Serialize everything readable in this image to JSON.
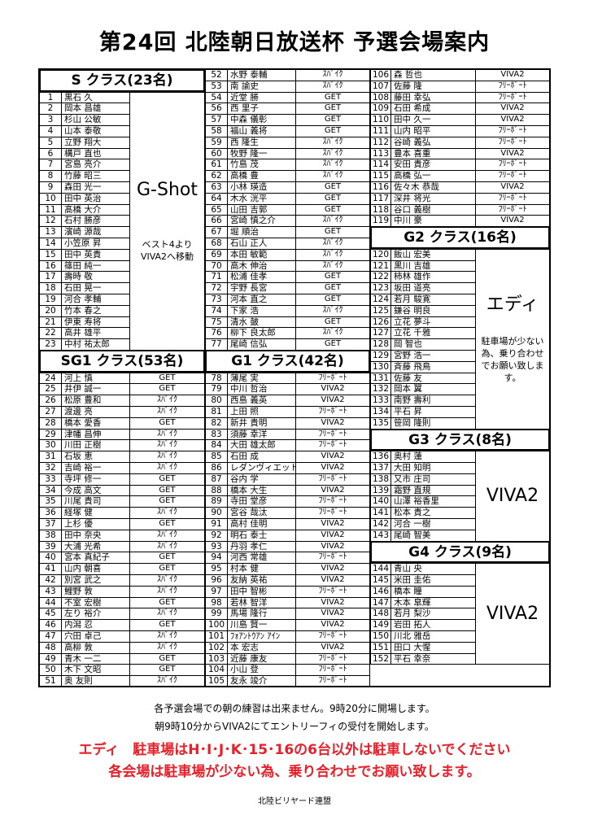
{
  "title": "第24回 北陸朝日放送杯 予選会場案内",
  "columns": [
    {
      "blocks": [
        {
          "header": "S クラス(23名)",
          "merged_venue": {
            "main": "G-Shot",
            "note": "ベスト4より\nVIVA2へ移動"
          },
          "players": [
            [
              1,
              "黒石 久"
            ],
            [
              2,
              "岡本 昌雄"
            ],
            [
              3,
              "杉山 公敏"
            ],
            [
              4,
              "山本 泰敬"
            ],
            [
              5,
              "立野 翔大"
            ],
            [
              6,
              "構戸 直也"
            ],
            [
              7,
              "宮島 亮介"
            ],
            [
              8,
              "竹藤 昭三"
            ],
            [
              9,
              "森田 光一"
            ],
            [
              10,
              "田中 英治"
            ],
            [
              11,
              "髙橋 大介"
            ],
            [
              12,
              "石村 勝彦"
            ],
            [
              13,
              "濱崎 源哉"
            ],
            [
              14,
              "小笠原 昇"
            ],
            [
              15,
              "田中 英貴"
            ],
            [
              16,
              "篠田 純一"
            ],
            [
              17,
              "壽時 敬"
            ],
            [
              18,
              "石田 晃一"
            ],
            [
              19,
              "河合 孝輔"
            ],
            [
              20,
              "竹本 春之"
            ],
            [
              21,
              "伊東 寿将"
            ],
            [
              22,
              "高井 雄平"
            ],
            [
              23,
              "中村 祐太郎"
            ]
          ]
        },
        {
          "header": "SG1 クラス(53名)",
          "players": [
            [
              24,
              "河上 慎",
              "GET"
            ],
            [
              25,
              "井伊 誠一",
              "GET"
            ],
            [
              26,
              "松原 豊和",
              "ｽﾊﾟｲｸ"
            ],
            [
              27,
              "渡邊 亮",
              "ｽﾊﾟｲｸ"
            ],
            [
              28,
              "橋本 愛香",
              "GET"
            ],
            [
              29,
              "津幡 昌伸",
              "ｽﾊﾟｲｸ"
            ],
            [
              30,
              "川田 正樹",
              "ｽﾊﾟｲｸ"
            ],
            [
              31,
              "石坂 恵",
              "ｽﾊﾟｲｸ"
            ],
            [
              32,
              "吉崎 裕一",
              "ｽﾊﾟｲｸ"
            ],
            [
              33,
              "寺坪 修一",
              "GET"
            ],
            [
              34,
              "今成 高文",
              "GET"
            ],
            [
              35,
              "川尾 貴司",
              "GET"
            ],
            [
              36,
              "経塚 健",
              "ｽﾊﾟｲｸ"
            ],
            [
              37,
              "上杉 優",
              "GET"
            ],
            [
              38,
              "田中 奈央",
              "ｽﾊﾟｲｸ"
            ],
            [
              39,
              "大浦 光希",
              "ｽﾊﾟｲｸ"
            ],
            [
              40,
              "宮本 真紀子",
              "GET"
            ],
            [
              41,
              "山内 朝喜",
              "GET"
            ],
            [
              42,
              "別宮 武之",
              "ｽﾊﾟｲｸ"
            ],
            [
              43,
              "鯉野 敦",
              "ｽﾊﾟｲｸ"
            ],
            [
              44,
              "不室 宏樹",
              "GET"
            ],
            [
              45,
              "左り 裕介",
              "ｽﾊﾟｲｸ"
            ],
            [
              46,
              "内潟 忍",
              "GET"
            ],
            [
              47,
              "穴田 卓己",
              "ｽﾊﾟｲｸ"
            ],
            [
              48,
              "高柳 敦",
              "ｽﾊﾟｲｸ"
            ],
            [
              49,
              "青木 一二",
              "GET"
            ],
            [
              50,
              "木下 文昭",
              "GET"
            ],
            [
              51,
              "奥 友則",
              "ｽﾊﾟｲｸ"
            ]
          ]
        }
      ]
    },
    {
      "blocks": [
        {
          "players": [
            [
              52,
              "水野 泰輔",
              "ｽﾊﾟｲｸ"
            ],
            [
              53,
              "南 諭史",
              "ｽﾊﾟｲｸ"
            ],
            [
              54,
              "近堂 勝",
              "GET"
            ],
            [
              56,
              "西 里子",
              "GET"
            ],
            [
              57,
              "中森 儀彰",
              "GET"
            ],
            [
              58,
              "福山 義将",
              "GET"
            ],
            [
              59,
              "西 隆生",
              "ｽﾊﾟｲｸ"
            ],
            [
              60,
              "牧野 隆一",
              "ｽﾊﾟｲｸ"
            ],
            [
              61,
              "竹島 茂",
              "ｽﾊﾟｲｸ"
            ],
            [
              62,
              "高橋 豊",
              "ｽﾊﾟｲｸ"
            ],
            [
              63,
              "小林 瑛造",
              "GET"
            ],
            [
              64,
              "木水 洸平",
              "GET"
            ],
            [
              65,
              "山田 吉郭",
              "GET"
            ],
            [
              66,
              "宮崎 慎之介",
              "ｽﾊﾟｲｸ"
            ],
            [
              67,
              "堀 順治",
              "GET"
            ],
            [
              68,
              "石山 正人",
              "ｽﾊﾟｲｸ"
            ],
            [
              69,
              "本田 敏範",
              "ｽﾊﾟｲｸ"
            ],
            [
              70,
              "高木 伸治",
              "ｽﾊﾟｲｸ"
            ],
            [
              71,
              "松浦 佳孝",
              "GET"
            ],
            [
              72,
              "宇野 長宮",
              "GET"
            ],
            [
              73,
              "河本 直之",
              "GET"
            ],
            [
              74,
              "下家 浩",
              "ｽﾊﾟｲｸ"
            ],
            [
              75,
              "清水 皷",
              "GET"
            ],
            [
              76,
              "柳下 良太郎",
              "ｽﾊﾟｲｸ"
            ],
            [
              77,
              "尾崎 信弘",
              "GET"
            ]
          ]
        },
        {
          "header": "G1 クラス(42名)",
          "players": [
            [
              78,
              "薄尾 実",
              "ﾌﾘｰﾎﾟｰﾄ"
            ],
            [
              79,
              "中川 哲治",
              "VIVA2"
            ],
            [
              80,
              "西島 義英",
              "VIVA2"
            ],
            [
              81,
              "上田 照",
              "ﾌﾘｰﾎﾟｰﾄ"
            ],
            [
              82,
              "新井 貴明",
              "VIVA2"
            ],
            [
              83,
              "須藤 幸洋",
              "ﾌﾘｰﾎﾟｰﾄ"
            ],
            [
              84,
              "大田 雄太郎",
              "ﾌﾘｰﾎﾟｰﾄ"
            ],
            [
              85,
              "石田 成",
              "VIVA2"
            ],
            [
              86,
              "レダンヴィエット",
              "VIVA2"
            ],
            [
              87,
              "谷内 学",
              "ﾌﾘｰﾎﾟｰﾄ"
            ],
            [
              88,
              "橋本 大生",
              "VIVA2"
            ],
            [
              89,
              "寺田 堂彦",
              "ﾌﾘｰﾎﾟｰﾄ"
            ],
            [
              90,
              "宮谷 哉汰",
              "ﾌﾘｰﾎﾟｰﾄ"
            ],
            [
              91,
              "高村 佳明",
              "VIVA2"
            ],
            [
              92,
              "明石 泰士",
              "VIVA2"
            ],
            [
              93,
              "丹羽 孝仁",
              "VIVA2"
            ],
            [
              94,
              "河西 常雄",
              "ﾌﾘｰﾎﾟｰﾄ"
            ],
            [
              95,
              "村本 健",
              "VIVA2"
            ],
            [
              96,
              "友納 英祐",
              "VIVA2"
            ],
            [
              97,
              "田中 智彬",
              "ﾌﾘｰﾎﾟｰﾄ"
            ],
            [
              98,
              "若林 智洋",
              "VIVA2"
            ],
            [
              99,
              "馬場 隆行",
              "VIVA2"
            ],
            [
              100,
              "川島 賢一",
              "VIVA2"
            ],
            [
              101,
              "ﾌｫｱﾝﾄｳｱﾝ ｱｲﾝ",
              "ﾌﾘｰﾎﾟｰﾄ"
            ],
            [
              102,
              "本 宏志",
              "VIVA2"
            ],
            [
              103,
              "近藤 康友",
              "ﾌﾘｰﾎﾟｰﾄ"
            ],
            [
              104,
              "小山 登",
              "ﾌﾘｰﾎﾟｰﾄ"
            ],
            [
              105,
              "友永 竣介",
              "ﾌﾘｰﾎﾟｰﾄ"
            ]
          ]
        }
      ]
    },
    {
      "blocks": [
        {
          "players": [
            [
              106,
              "森 哲也",
              "VIVA2"
            ],
            [
              107,
              "佐藤 隆",
              "ﾌﾘｰﾎﾟｰﾄ"
            ],
            [
              108,
              "藤田 幸弘",
              "ﾌﾘｰﾎﾟｰﾄ"
            ],
            [
              109,
              "石田 希成",
              "VIVA2"
            ],
            [
              110,
              "田中 久一",
              "VIVA2"
            ],
            [
              111,
              "山内 昭平",
              "ﾌﾘｰﾎﾟｰﾄ"
            ],
            [
              112,
              "谷崎 義弘",
              "ﾌﾘｰﾎﾟｰﾄ"
            ],
            [
              113,
              "豊本 喜重",
              "VIVA2"
            ],
            [
              114,
              "安田 貴彦",
              "ﾌﾘｰﾎﾟｰﾄ"
            ],
            [
              115,
              "高橋 弘一",
              "ﾌﾘｰﾎﾟｰﾄ"
            ],
            [
              116,
              "佐々木 恭哉",
              "VIVA2"
            ],
            [
              117,
              "深井 将光",
              "ﾌﾘｰﾎﾟｰﾄ"
            ],
            [
              118,
              "谷口 義樹",
              "ﾌﾘｰﾎﾟｰﾄ"
            ],
            [
              119,
              "中川 豪",
              "VIVA2"
            ]
          ]
        },
        {
          "header": "G2 クラス(16名)",
          "merged_venue": {
            "main": "エディ",
            "note": "駐車場が少ない為、乗り合わせでお願い致します。"
          },
          "players": [
            [
              120,
              "飯山 宏美"
            ],
            [
              121,
              "黒川 吉雄"
            ],
            [
              122,
              "柿林 雄作"
            ],
            [
              123,
              "坂田 道亮"
            ],
            [
              124,
              "若月 駿寛"
            ],
            [
              125,
              "鎌谷 明良"
            ],
            [
              126,
              "立花 夢斗"
            ],
            [
              127,
              "立花 千雅"
            ],
            [
              128,
              "岡 智也"
            ],
            [
              129,
              "宮野 浩一"
            ],
            [
              130,
              "斉藤 飛鳥"
            ],
            [
              131,
              "佐藤 友"
            ],
            [
              132,
              "岡本 翼"
            ],
            [
              133,
              "南野 壽利"
            ],
            [
              134,
              "平石 昇"
            ],
            [
              135,
              "笹岡 隆則"
            ]
          ]
        },
        {
          "header": "G3 クラス(8名)",
          "merged_venue": {
            "main": "VIVA2"
          },
          "players": [
            [
              136,
              "奥村 蓮"
            ],
            [
              137,
              "大田 知明"
            ],
            [
              138,
              "又市 庄司"
            ],
            [
              139,
              "霜野 直規"
            ],
            [
              140,
              "山澤 裕香里"
            ],
            [
              141,
              "松本 貴之"
            ],
            [
              142,
              "河合 一樹"
            ],
            [
              143,
              "尾崎 智美"
            ]
          ]
        },
        {
          "header": "G4 クラス(9名)",
          "merged_venue": {
            "main": "VIVA2"
          },
          "players": [
            [
              144,
              "青山 央"
            ],
            [
              145,
              "米田 圭佑"
            ],
            [
              146,
              "橋本 瞳"
            ],
            [
              147,
              "木本 皐輝"
            ],
            [
              148,
              "若月 梨沙"
            ],
            [
              149,
              "岩田 拓人"
            ],
            [
              150,
              "川北 雅岳"
            ],
            [
              151,
              "田口 大惺"
            ],
            [
              152,
              "平石 幸奈"
            ]
          ]
        }
      ]
    }
  ],
  "footer": {
    "line1": "各予選会場での朝の練習は出来ません。9時20分に開場します。",
    "line2": "朝9時10分からVIVA2にてエントリーフィの受付を開始します。",
    "warning1": "エディ　駐車場はH･I･J･K･15･16の6台以外は駐車しないでください",
    "warning2": "各会場は駐車場が少ない為、乗り合わせでお願い致します。",
    "organizer": "北陸ビリヤード連盟"
  },
  "colors": {
    "warning": "#e8202a",
    "border": "#000000"
  }
}
